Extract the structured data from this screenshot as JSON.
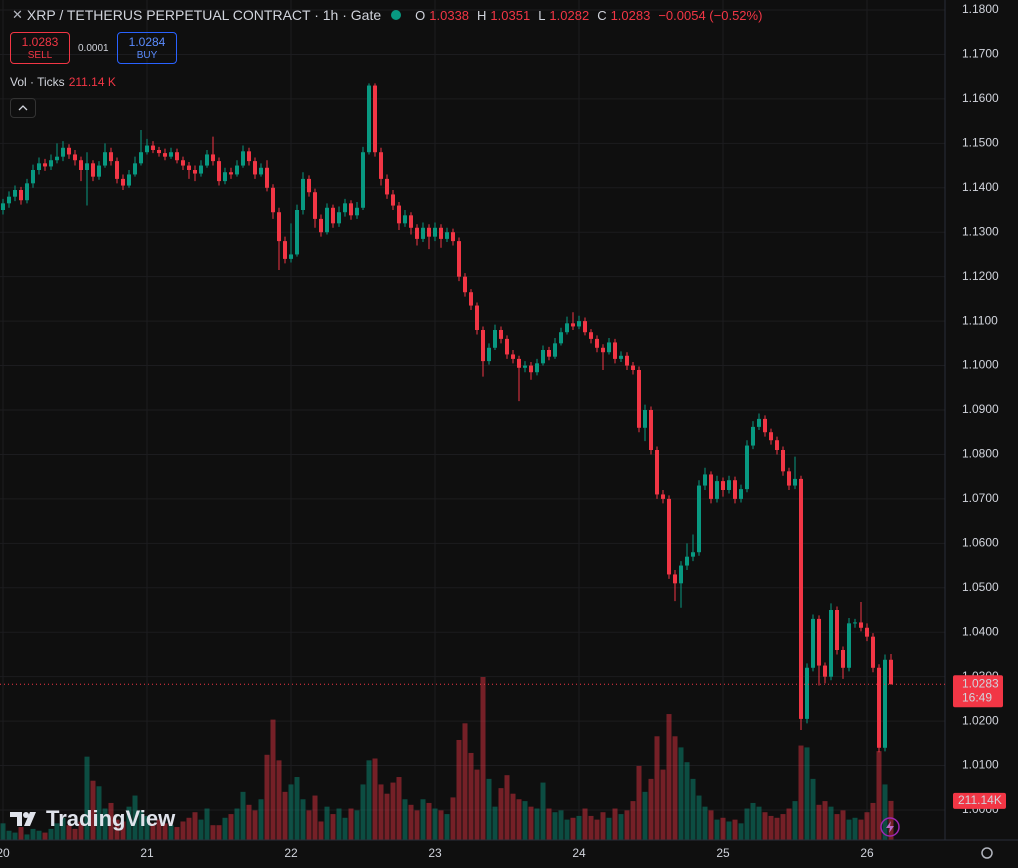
{
  "chart_data": {
    "type": "candlestick",
    "title": "XRP / TETHERUS PERPETUAL CONTRACT · 1h · Gate",
    "ohlc_labels": [
      "O",
      "H",
      "L",
      "C"
    ],
    "change": "−0.0054 (−0.52%)",
    "up_color": "#089981",
    "down_color": "#f23645",
    "open": [
      1.135,
      1.1365,
      1.138,
      1.1395,
      1.1372,
      1.141,
      1.144,
      1.1455,
      1.1448,
      1.1462,
      1.147,
      1.149,
      1.1475,
      1.1462,
      1.144,
      1.1455,
      1.1425,
      1.145,
      1.148,
      1.146,
      1.142,
      1.1405,
      1.143,
      1.1455,
      1.148,
      1.1495,
      1.1485,
      1.1478,
      1.147,
      1.148,
      1.1462,
      1.145,
      1.144,
      1.1432,
      1.145,
      1.1475,
      1.146,
      1.1415,
      1.1435,
      1.143,
      1.145,
      1.1482,
      1.146,
      1.143,
      1.1445,
      1.14,
      1.1345,
      1.128,
      1.124,
      1.125,
      1.135,
      1.142,
      1.139,
      1.133,
      1.13,
      1.1355,
      1.132,
      1.1345,
      1.1365,
      1.1338,
      1.1355,
      1.148,
      1.163,
      1.148,
      1.142,
      1.1385,
      1.136,
      1.132,
      1.1338,
      1.131,
      1.1285,
      1.131,
      1.129,
      1.131,
      1.1285,
      1.13,
      1.128,
      1.12,
      1.1165,
      1.1135,
      1.108,
      1.101,
      1.104,
      1.108,
      1.106,
      1.1025,
      1.1015,
      1.0995,
      1.1,
      1.0985,
      1.1005,
      1.1035,
      1.102,
      1.105,
      1.1075,
      1.1095,
      1.1088,
      1.11,
      1.1075,
      1.106,
      1.104,
      1.103,
      1.1052,
      1.1015,
      1.1022,
      1.1,
      1.099,
      1.086,
      1.09,
      1.081,
      1.071,
      1.07,
      1.053,
      1.051,
      1.055,
      1.057,
      1.058,
      1.073,
      1.0755,
      1.07,
      1.074,
      1.072,
      1.0742,
      1.07,
      1.0722,
      1.082,
      1.0862,
      1.088,
      1.085,
      1.0832,
      1.081,
      1.0762,
      1.073,
      1.0745,
      1.0205,
      1.032,
      1.043,
      1.0325,
      1.03,
      1.045,
      1.036,
      1.032,
      1.042,
      1.0422,
      1.041,
      1.039,
      1.032,
      1.014,
      1.0338
    ],
    "high": [
      1.1375,
      1.1392,
      1.1405,
      1.1402,
      1.142,
      1.1452,
      1.1468,
      1.1465,
      1.1475,
      1.15,
      1.1505,
      1.1498,
      1.1485,
      1.147,
      1.148,
      1.1462,
      1.146,
      1.15,
      1.149,
      1.1468,
      1.143,
      1.144,
      1.147,
      1.153,
      1.151,
      1.1505,
      1.1492,
      1.1488,
      1.149,
      1.1488,
      1.147,
      1.1458,
      1.145,
      1.1462,
      1.1485,
      1.1515,
      1.1468,
      1.1445,
      1.1445,
      1.1462,
      1.1495,
      1.149,
      1.1468,
      1.1455,
      1.1462,
      1.1408,
      1.1355,
      1.129,
      1.132,
      1.1362,
      1.1435,
      1.1428,
      1.1398,
      1.134,
      1.1365,
      1.1362,
      1.1358,
      1.1375,
      1.1372,
      1.1368,
      1.1492,
      1.1635,
      1.1635,
      1.149,
      1.143,
      1.1395,
      1.1368,
      1.135,
      1.1345,
      1.1318,
      1.1322,
      1.1318,
      1.1322,
      1.1318,
      1.131,
      1.1308,
      1.1288,
      1.1208,
      1.1172,
      1.1142,
      1.1088,
      1.105,
      1.1092,
      1.1088,
      1.1068,
      1.1035,
      1.1022,
      1.101,
      1.1008,
      1.1015,
      1.1045,
      1.1042,
      1.1062,
      1.1085,
      1.111,
      1.112,
      1.1112,
      1.1108,
      1.1082,
      1.1068,
      1.1048,
      1.1062,
      1.106,
      1.1032,
      1.103,
      1.1008,
      1.0998,
      1.0912,
      1.0908,
      1.0818,
      1.072,
      1.0708,
      1.054,
      1.056,
      1.06,
      1.062,
      1.0742,
      1.077,
      1.0762,
      1.0752,
      1.0748,
      1.0752,
      1.075,
      1.0732,
      1.0832,
      1.0875,
      1.0892,
      1.0888,
      1.0858,
      1.084,
      1.0818,
      1.077,
      1.0795,
      1.0752,
      1.033,
      1.044,
      1.0438,
      1.0332,
      1.0465,
      1.0458,
      1.0368,
      1.0432,
      1.043,
      1.0468,
      1.042,
      1.0398,
      1.0328,
      1.035,
      1.0351
    ],
    "low": [
      1.134,
      1.1355,
      1.137,
      1.1362,
      1.1365,
      1.14,
      1.143,
      1.1438,
      1.144,
      1.1455,
      1.146,
      1.1465,
      1.145,
      1.1415,
      1.136,
      1.1415,
      1.1418,
      1.1445,
      1.145,
      1.141,
      1.1395,
      1.14,
      1.1425,
      1.145,
      1.1475,
      1.1478,
      1.147,
      1.1462,
      1.1465,
      1.1455,
      1.144,
      1.142,
      1.1415,
      1.1425,
      1.1445,
      1.145,
      1.1405,
      1.1408,
      1.142,
      1.1425,
      1.1445,
      1.145,
      1.142,
      1.1425,
      1.1392,
      1.133,
      1.1215,
      1.123,
      1.1232,
      1.1245,
      1.134,
      1.138,
      1.131,
      1.129,
      1.1295,
      1.131,
      1.1312,
      1.1335,
      1.1328,
      1.133,
      1.135,
      1.1475,
      1.147,
      1.1405,
      1.1375,
      1.135,
      1.1305,
      1.1312,
      1.1295,
      1.127,
      1.1278,
      1.1262,
      1.128,
      1.1265,
      1.1278,
      1.127,
      1.119,
      1.1155,
      1.1125,
      1.107,
      1.0975,
      1.1002,
      1.1035,
      1.105,
      1.1015,
      1.1005,
      1.092,
      1.0985,
      1.0968,
      1.0978,
      1.1,
      1.1012,
      1.1015,
      1.1045,
      1.107,
      1.108,
      1.1082,
      1.1068,
      1.105,
      1.103,
      1.099,
      1.1025,
      1.1005,
      1.1008,
      1.099,
      1.098,
      1.085,
      1.083,
      1.08,
      1.07,
      1.069,
      1.052,
      1.047,
      1.0455,
      1.054,
      1.056,
      1.0572,
      1.072,
      1.069,
      1.0692,
      1.0705,
      1.0712,
      1.069,
      1.0692,
      1.0715,
      1.0812,
      1.0855,
      1.084,
      1.0822,
      1.08,
      1.0752,
      1.072,
      1.0722,
      1.018,
      1.0195,
      1.0312,
      1.028,
      1.0285,
      1.0292,
      1.035,
      1.0295,
      1.0312,
      1.041,
      1.0402,
      1.038,
      1.031,
      1.013,
      1.0132,
      1.0282
    ],
    "close": [
      1.1365,
      1.138,
      1.1395,
      1.1372,
      1.141,
      1.144,
      1.1455,
      1.1448,
      1.1462,
      1.147,
      1.149,
      1.1475,
      1.1462,
      1.144,
      1.1455,
      1.1425,
      1.145,
      1.148,
      1.146,
      1.142,
      1.1405,
      1.143,
      1.1455,
      1.148,
      1.1495,
      1.1485,
      1.1478,
      1.147,
      1.148,
      1.1462,
      1.145,
      1.144,
      1.1432,
      1.145,
      1.1475,
      1.146,
      1.1415,
      1.1435,
      1.143,
      1.145,
      1.1482,
      1.146,
      1.143,
      1.1445,
      1.14,
      1.1345,
      1.128,
      1.124,
      1.125,
      1.135,
      1.142,
      1.139,
      1.133,
      1.13,
      1.1355,
      1.132,
      1.1345,
      1.1365,
      1.1338,
      1.1355,
      1.148,
      1.163,
      1.148,
      1.142,
      1.1385,
      1.136,
      1.132,
      1.1338,
      1.131,
      1.1285,
      1.131,
      1.129,
      1.131,
      1.1285,
      1.13,
      1.128,
      1.12,
      1.1165,
      1.1135,
      1.108,
      1.101,
      1.104,
      1.108,
      1.106,
      1.1025,
      1.1015,
      1.0995,
      1.1,
      1.0985,
      1.1005,
      1.1035,
      1.102,
      1.105,
      1.1075,
      1.1095,
      1.1088,
      1.11,
      1.1075,
      1.106,
      1.104,
      1.103,
      1.1052,
      1.1015,
      1.1022,
      1.1,
      1.099,
      1.086,
      1.09,
      1.081,
      1.071,
      1.07,
      1.053,
      1.051,
      1.055,
      1.057,
      1.058,
      1.073,
      1.0755,
      1.07,
      1.074,
      1.072,
      1.0742,
      1.07,
      1.0722,
      1.082,
      1.0862,
      1.088,
      1.085,
      1.0832,
      1.081,
      1.0762,
      1.073,
      1.0745,
      1.0205,
      1.032,
      1.043,
      1.0325,
      1.03,
      1.045,
      1.036,
      1.032,
      1.042,
      1.0422,
      1.041,
      1.039,
      1.032,
      1.014,
      1.0338,
      1.0283
    ],
    "volume": [
      90,
      50,
      40,
      70,
      30,
      60,
      50,
      40,
      60,
      90,
      120,
      80,
      60,
      100,
      450,
      320,
      290,
      170,
      200,
      110,
      100,
      180,
      240,
      160,
      130,
      90,
      110,
      90,
      80,
      70,
      100,
      120,
      150,
      110,
      170,
      80,
      80,
      120,
      140,
      170,
      260,
      190,
      160,
      220,
      460,
      650,
      430,
      260,
      300,
      340,
      220,
      160,
      240,
      100,
      180,
      140,
      170,
      120,
      170,
      160,
      300,
      430,
      440,
      300,
      250,
      310,
      340,
      220,
      190,
      160,
      220,
      200,
      170,
      160,
      140,
      230,
      540,
      630,
      470,
      380,
      880,
      330,
      180,
      280,
      350,
      250,
      220,
      210,
      180,
      170,
      310,
      170,
      150,
      160,
      110,
      120,
      130,
      170,
      130,
      110,
      150,
      120,
      170,
      140,
      160,
      210,
      400,
      260,
      330,
      560,
      380,
      680,
      560,
      500,
      420,
      330,
      240,
      180,
      160,
      110,
      120,
      100,
      110,
      90,
      170,
      200,
      180,
      150,
      130,
      120,
      140,
      170,
      210,
      510,
      500,
      330,
      190,
      210,
      180,
      140,
      160,
      110,
      120,
      110,
      150,
      200,
      480,
      300,
      211.14
    ],
    "volume_name": "Vol · Ticks",
    "volume_legend": "211.14 K",
    "volume_badge": "211.14K",
    "ylim": [
      0.99325,
      1.18225
    ],
    "yticks": [
      {
        "value": 1.18,
        "label": "1.1800"
      },
      {
        "value": 1.17,
        "label": "1.1700"
      },
      {
        "value": 1.16,
        "label": "1.1600"
      },
      {
        "value": 1.15,
        "label": "1.1500"
      },
      {
        "value": 1.14,
        "label": "1.1400"
      },
      {
        "value": 1.13,
        "label": "1.1300"
      },
      {
        "value": 1.12,
        "label": "1.1200"
      },
      {
        "value": 1.11,
        "label": "1.1100"
      },
      {
        "value": 1.1,
        "label": "1.1000"
      },
      {
        "value": 1.09,
        "label": "1.0900"
      },
      {
        "value": 1.08,
        "label": "1.0800"
      },
      {
        "value": 1.07,
        "label": "1.0700"
      },
      {
        "value": 1.06,
        "label": "1.0600"
      },
      {
        "value": 1.05,
        "label": "1.0500"
      },
      {
        "value": 1.04,
        "label": "1.0400"
      },
      {
        "value": 1.03,
        "label": "1.0300"
      },
      {
        "value": 1.02,
        "label": "1.0200"
      },
      {
        "value": 1.01,
        "label": "1.0100"
      },
      {
        "value": 1,
        "label": "1.0000"
      }
    ],
    "xlim": [
      -0.5,
      157
    ],
    "xticks": [
      {
        "value": 0,
        "label": "20"
      },
      {
        "value": 24,
        "label": "21"
      },
      {
        "value": 48,
        "label": "22"
      },
      {
        "value": 72,
        "label": "23"
      },
      {
        "value": 96,
        "label": "24"
      },
      {
        "value": 120,
        "label": "25"
      },
      {
        "value": 144,
        "label": "26"
      }
    ],
    "grid": true
  },
  "trade_panel": {
    "sell_label": "SELL",
    "spread": "0.0001",
    "buy": "1.0284",
    "buy_label": "BUY",
    "countdown": "16:49"
  },
  "watermark": "TradingView"
}
